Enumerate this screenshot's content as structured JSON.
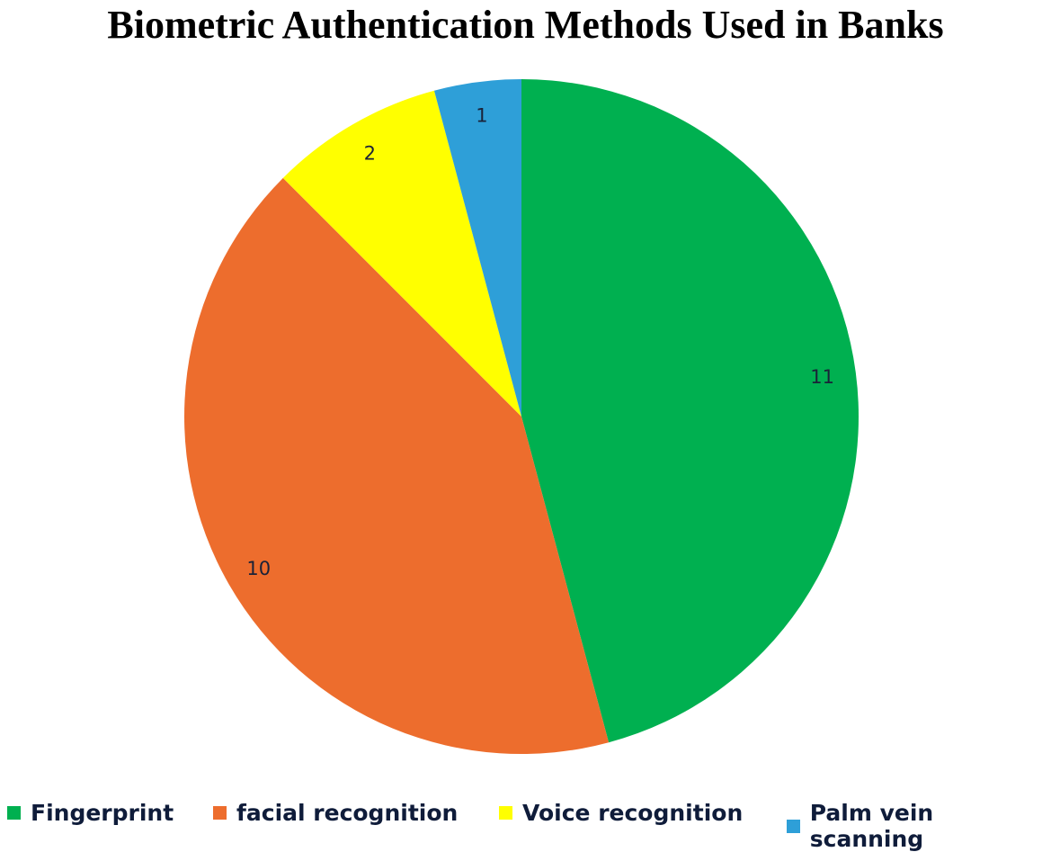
{
  "chart_data": {
    "type": "pie",
    "title": "Biometric Authentication Methods Used in Banks",
    "categories": [
      "Fingerprint",
      "facial recognition",
      "Voice recognition",
      "Palm vein scanning"
    ],
    "values": [
      11,
      10,
      2,
      1
    ],
    "colors": [
      "#00B050",
      "#ED6D2D",
      "#FFFF00",
      "#2E9FD8"
    ],
    "start_angle": "12 o'clock",
    "direction": "clockwise",
    "data_labels": [
      "11",
      "10",
      "2",
      "1"
    ],
    "legend_position": "bottom"
  }
}
